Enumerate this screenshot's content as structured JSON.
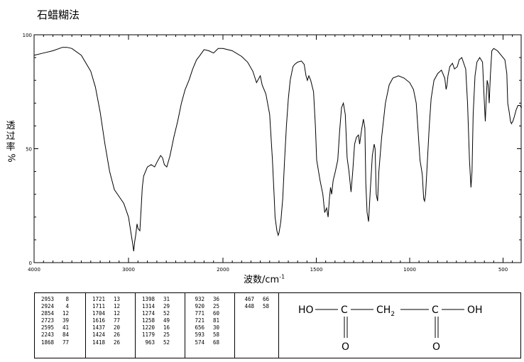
{
  "title": "石蜡糊法",
  "chart_data": {
    "type": "line",
    "title": "石蜡糊法",
    "xlabel": "波数/cm",
    "xlabel_sup": "-1",
    "ylabel_text": "透过率",
    "ylabel_unit": "%",
    "xlim": [
      4000,
      400
    ],
    "ylim": [
      0,
      100
    ],
    "x_ticks": [
      4000,
      3000,
      2000,
      1500,
      1000,
      500
    ],
    "y_ticks": [
      0,
      50,
      100
    ],
    "grid": false,
    "series": [
      {
        "points": [
          [
            4000,
            91
          ],
          [
            3900,
            92
          ],
          [
            3800,
            93
          ],
          [
            3700,
            94.5
          ],
          [
            3650,
            94.5
          ],
          [
            3600,
            94
          ],
          [
            3500,
            91
          ],
          [
            3400,
            84
          ],
          [
            3350,
            77
          ],
          [
            3300,
            66
          ],
          [
            3250,
            52
          ],
          [
            3200,
            40
          ],
          [
            3150,
            32
          ],
          [
            3100,
            29
          ],
          [
            3050,
            26
          ],
          [
            3000,
            20
          ],
          [
            2970,
            12
          ],
          [
            2955,
            8
          ],
          [
            2945,
            5
          ],
          [
            2935,
            9
          ],
          [
            2924,
            12
          ],
          [
            2910,
            17
          ],
          [
            2900,
            15
          ],
          [
            2880,
            14
          ],
          [
            2865,
            25
          ],
          [
            2854,
            33
          ],
          [
            2840,
            38
          ],
          [
            2800,
            42
          ],
          [
            2760,
            43
          ],
          [
            2723,
            42
          ],
          [
            2700,
            44
          ],
          [
            2660,
            47
          ],
          [
            2640,
            46
          ],
          [
            2620,
            43
          ],
          [
            2595,
            42
          ],
          [
            2560,
            47
          ],
          [
            2520,
            55
          ],
          [
            2480,
            62
          ],
          [
            2440,
            70
          ],
          [
            2400,
            76
          ],
          [
            2360,
            80
          ],
          [
            2320,
            85
          ],
          [
            2280,
            89
          ],
          [
            2243,
            91
          ],
          [
            2200,
            93.5
          ],
          [
            2150,
            93
          ],
          [
            2100,
            92
          ],
          [
            2050,
            94
          ],
          [
            2000,
            94
          ],
          [
            1950,
            93
          ],
          [
            1900,
            90.5
          ],
          [
            1868,
            88
          ],
          [
            1840,
            84
          ],
          [
            1820,
            79
          ],
          [
            1800,
            82
          ],
          [
            1790,
            78
          ],
          [
            1770,
            74
          ],
          [
            1750,
            65
          ],
          [
            1735,
            45
          ],
          [
            1725,
            28
          ],
          [
            1721,
            20
          ],
          [
            1711,
            14
          ],
          [
            1704,
            12
          ],
          [
            1700,
            13
          ],
          [
            1690,
            18
          ],
          [
            1680,
            28
          ],
          [
            1670,
            45
          ],
          [
            1660,
            60
          ],
          [
            1650,
            72
          ],
          [
            1640,
            80
          ],
          [
            1625,
            86
          ],
          [
            1616,
            87
          ],
          [
            1600,
            88
          ],
          [
            1580,
            88.5
          ],
          [
            1565,
            87
          ],
          [
            1555,
            82
          ],
          [
            1548,
            80
          ],
          [
            1540,
            82
          ],
          [
            1530,
            80
          ],
          [
            1515,
            75
          ],
          [
            1505,
            60
          ],
          [
            1498,
            45
          ],
          [
            1480,
            36
          ],
          [
            1465,
            30
          ],
          [
            1455,
            22
          ],
          [
            1445,
            24
          ],
          [
            1437,
            20
          ],
          [
            1430,
            28
          ],
          [
            1424,
            33
          ],
          [
            1418,
            30
          ],
          [
            1410,
            36
          ],
          [
            1398,
            40
          ],
          [
            1385,
            45
          ],
          [
            1375,
            58
          ],
          [
            1365,
            68
          ],
          [
            1355,
            70
          ],
          [
            1345,
            65
          ],
          [
            1335,
            46
          ],
          [
            1325,
            40
          ],
          [
            1314,
            31
          ],
          [
            1305,
            40
          ],
          [
            1295,
            52
          ],
          [
            1285,
            55
          ],
          [
            1274,
            56
          ],
          [
            1268,
            52
          ],
          [
            1258,
            58
          ],
          [
            1248,
            63
          ],
          [
            1240,
            59
          ],
          [
            1235,
            35
          ],
          [
            1228,
            22
          ],
          [
            1220,
            18
          ],
          [
            1212,
            30
          ],
          [
            1200,
            47
          ],
          [
            1190,
            52
          ],
          [
            1185,
            50
          ],
          [
            1179,
            30
          ],
          [
            1172,
            27
          ],
          [
            1165,
            40
          ],
          [
            1150,
            55
          ],
          [
            1130,
            70
          ],
          [
            1110,
            78
          ],
          [
            1090,
            81
          ],
          [
            1060,
            82
          ],
          [
            1030,
            81
          ],
          [
            1000,
            79
          ],
          [
            980,
            76
          ],
          [
            965,
            70
          ],
          [
            955,
            58
          ],
          [
            945,
            45
          ],
          [
            935,
            40
          ],
          [
            932,
            38
          ],
          [
            925,
            28
          ],
          [
            920,
            27
          ],
          [
            915,
            30
          ],
          [
            905,
            45
          ],
          [
            895,
            60
          ],
          [
            885,
            72
          ],
          [
            870,
            80
          ],
          [
            850,
            83
          ],
          [
            830,
            84.5
          ],
          [
            812,
            81
          ],
          [
            805,
            76
          ],
          [
            800,
            78
          ],
          [
            795,
            82
          ],
          [
            785,
            86
          ],
          [
            771,
            87.5
          ],
          [
            760,
            85
          ],
          [
            745,
            86
          ],
          [
            735,
            89
          ],
          [
            721,
            90
          ],
          [
            700,
            85
          ],
          [
            690,
            70
          ],
          [
            680,
            45
          ],
          [
            672,
            33
          ],
          [
            666,
            40
          ],
          [
            660,
            65
          ],
          [
            650,
            82
          ],
          [
            640,
            88
          ],
          [
            625,
            90
          ],
          [
            610,
            88
          ],
          [
            600,
            70
          ],
          [
            595,
            62
          ],
          [
            590,
            72
          ],
          [
            585,
            80
          ],
          [
            580,
            78
          ],
          [
            574,
            70
          ],
          [
            568,
            82
          ],
          [
            560,
            93
          ],
          [
            550,
            94
          ],
          [
            530,
            93
          ],
          [
            510,
            91
          ],
          [
            490,
            89
          ],
          [
            480,
            83
          ],
          [
            475,
            70
          ],
          [
            467,
            66
          ],
          [
            460,
            62
          ],
          [
            455,
            61
          ],
          [
            448,
            62
          ],
          [
            440,
            64
          ],
          [
            430,
            67
          ],
          [
            420,
            69
          ],
          [
            410,
            69
          ],
          [
            400,
            68
          ]
        ]
      }
    ]
  },
  "peak_table": [
    [
      [
        "2953",
        "8"
      ],
      [
        "2924",
        "4"
      ],
      [
        "2854",
        "12"
      ],
      [
        "2723",
        "39"
      ],
      [
        "2595",
        "41"
      ],
      [
        "2243",
        "84"
      ],
      [
        "1868",
        "77"
      ]
    ],
    [
      [
        "1721",
        "13"
      ],
      [
        "1711",
        "12"
      ],
      [
        "1704",
        "12"
      ],
      [
        "1616",
        "77"
      ],
      [
        "1437",
        "20"
      ],
      [
        "1424",
        "26"
      ],
      [
        "1418",
        "26"
      ]
    ],
    [
      [
        "1398",
        "31"
      ],
      [
        "1314",
        "29"
      ],
      [
        "1274",
        "52"
      ],
      [
        "1258",
        "49"
      ],
      [
        "1220",
        "16"
      ],
      [
        "1179",
        "25"
      ],
      [
        "963",
        "52"
      ]
    ],
    [
      [
        "932",
        "36"
      ],
      [
        "920",
        "25"
      ],
      [
        "771",
        "60"
      ],
      [
        "721",
        "81"
      ],
      [
        "656",
        "30"
      ],
      [
        "593",
        "58"
      ],
      [
        "574",
        "68"
      ]
    ],
    [
      [
        "467",
        "66"
      ],
      [
        "448",
        "58"
      ]
    ]
  ],
  "structure": {
    "ho": "HO",
    "oh": "OH",
    "c": "C",
    "ch": "CH",
    "sub2": "2",
    "o": "O"
  }
}
